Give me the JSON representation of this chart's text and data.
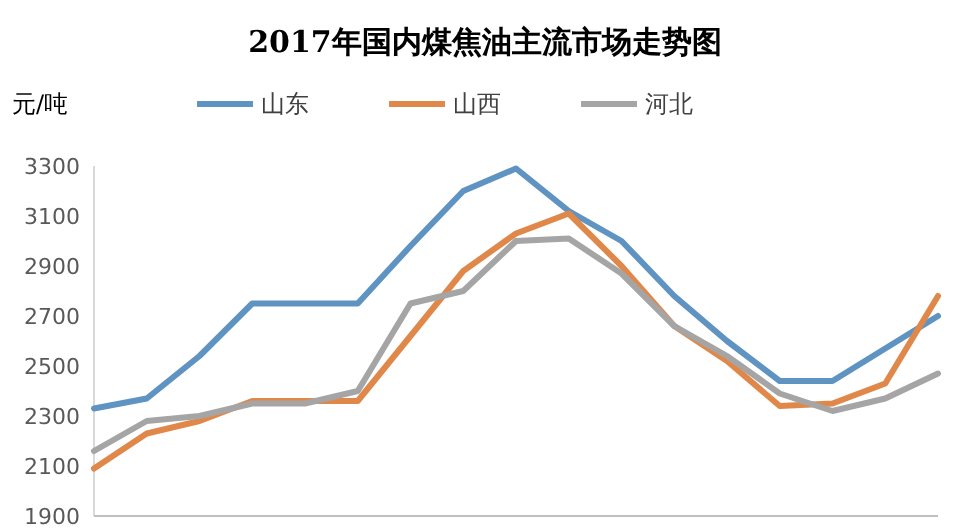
{
  "chart_data": {
    "type": "line",
    "title": "2017年国内煤焦油主流市场走势图",
    "ylabel": "元/吨",
    "categories": [
      null,
      null,
      null,
      null,
      null,
      null,
      null,
      null,
      null,
      null,
      null,
      null,
      null,
      null,
      null,
      null,
      null
    ],
    "series": [
      {
        "name": "山东",
        "color": "#5f93c2",
        "values": [
          2330,
          2370,
          2540,
          2750,
          2750,
          2750,
          2980,
          3200,
          3290,
          3120,
          3000,
          2780,
          2600,
          2440,
          2440,
          2570,
          2700
        ]
      },
      {
        "name": "山西",
        "color": "#e0884a",
        "values": [
          2090,
          2230,
          2280,
          2360,
          2360,
          2360,
          2620,
          2880,
          3030,
          3110,
          2900,
          2660,
          2520,
          2340,
          2350,
          2430,
          2780
        ]
      },
      {
        "name": "河北",
        "color": "#a5a5a5",
        "values": [
          2160,
          2280,
          2300,
          2350,
          2350,
          2400,
          2750,
          2800,
          3000,
          3010,
          2870,
          2660,
          2540,
          2390,
          2320,
          2370,
          2470
        ]
      }
    ],
    "ylim": [
      1900,
      3300
    ],
    "yticks": [
      1900,
      2100,
      2300,
      2500,
      2700,
      2900,
      3100,
      3300
    ],
    "grid": false,
    "legend": "top",
    "marker": "none",
    "line_style": "solid",
    "tick_labels": "y"
  }
}
